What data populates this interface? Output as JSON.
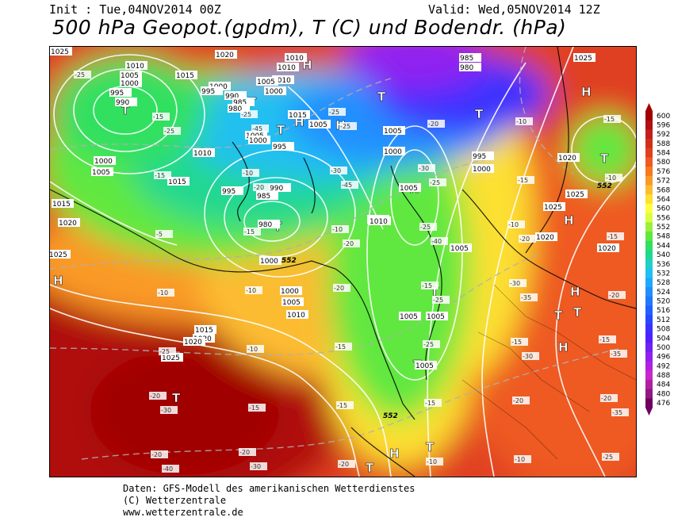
{
  "header": {
    "init": "Init : Tue,04NOV2014 00Z",
    "valid": "Valid: Wed,05NOV2014 12Z",
    "title": "500 hPa Geopot.(gpdm), T (C) und Bodendr. (hPa)"
  },
  "credits": {
    "line1": "Daten: GFS-Modell des amerikanischen Wetterdienstes",
    "line2": "(C) Wetterzentrale",
    "line3": "www.wetterzentrale.de"
  },
  "legend": {
    "values": [
      "600",
      "596",
      "592",
      "588",
      "584",
      "580",
      "576",
      "572",
      "568",
      "564",
      "560",
      "556",
      "552",
      "548",
      "544",
      "540",
      "536",
      "532",
      "528",
      "524",
      "520",
      "516",
      "512",
      "508",
      "504",
      "500",
      "496",
      "492",
      "488",
      "484",
      "480",
      "476"
    ],
    "colors": [
      "#a00000",
      "#b01010",
      "#c02020",
      "#d03018",
      "#e04020",
      "#ee5a20",
      "#f57a20",
      "#fa9a28",
      "#fcbc30",
      "#fde030",
      "#ffff40",
      "#d8ff40",
      "#9cf03c",
      "#60e840",
      "#30e060",
      "#20d890",
      "#20d0c8",
      "#20c0f0",
      "#20a8ff",
      "#2090ff",
      "#2078ff",
      "#2060ff",
      "#2848ff",
      "#3c30ff",
      "#5020ff",
      "#7020f0",
      "#9020f0",
      "#b020e0",
      "#c828c8",
      "#b020a0",
      "#901880",
      "#700060"
    ]
  },
  "map_labels": {
    "pressure_centers": [
      "T",
      "T",
      "H",
      "T",
      "H",
      "H",
      "T",
      "T",
      "T",
      "H",
      "T",
      "H",
      "H",
      "H",
      "T",
      "H",
      "T",
      "T",
      "T",
      "H",
      "H",
      "T",
      "T",
      "T",
      "H",
      "H",
      "H",
      "H",
      "H",
      "T"
    ],
    "isobars": [
      "1010",
      "1005",
      "1000",
      "995",
      "990",
      "1015",
      "1020",
      "1010",
      "1005",
      "1000",
      "1005",
      "1000",
      "995",
      "990",
      "985",
      "980",
      "1015",
      "1020",
      "1025",
      "1020",
      "1015",
      "1010",
      "1005",
      "1000",
      "995",
      "1000",
      "1005",
      "1010",
      "1015",
      "1020",
      "1025",
      "1025",
      "1010",
      "1005",
      "1000",
      "995",
      "1000",
      "985",
      "980",
      "1005",
      "1010",
      "1015",
      "1010",
      "1005",
      "1000",
      "1005",
      "1025",
      "1020",
      "1025",
      "1020",
      "1020",
      "1025",
      "1005",
      "1005",
      "1005",
      "1010",
      "1000",
      "995",
      "990",
      "985",
      "980"
    ],
    "temperatures": [
      "-25",
      "-25",
      "-20",
      "-20",
      "-25",
      "-30",
      "-35",
      "-40",
      "-45",
      "-45",
      "-40",
      "-35",
      "-35",
      "-30",
      "-30",
      "-25",
      "-25",
      "-20",
      "-20",
      "-25",
      "-15",
      "-20",
      "-20",
      "-15",
      "-15",
      "-10",
      "-10",
      "-15",
      "-10",
      "-10",
      "-10",
      "-5",
      "-10",
      "-15",
      "-15",
      "-10",
      "-15",
      "-15",
      "-15",
      "-20",
      "-25",
      "-20",
      "-25",
      "-15",
      "-10",
      "-10",
      "-15",
      "-15",
      "-20",
      "-20",
      "-25",
      "-30",
      "-25",
      "-30",
      "-15",
      "-20",
      "-20",
      "-25",
      "-30",
      "-10"
    ],
    "geopot": [
      "552",
      "552",
      "552"
    ]
  }
}
